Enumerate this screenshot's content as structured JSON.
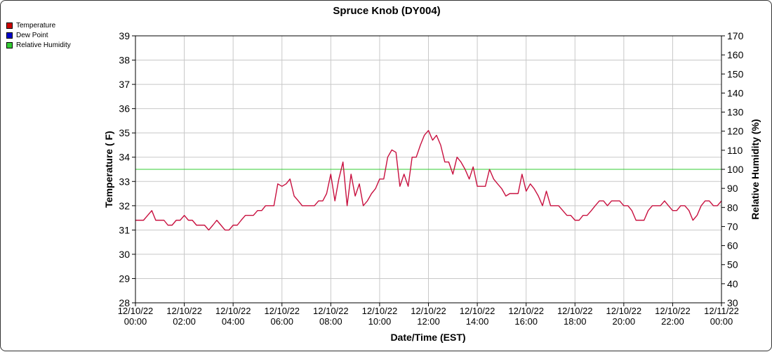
{
  "chart_data": {
    "type": "line",
    "title": "Spruce Knob (DY004)",
    "xlabel": "Date/Time (EST)",
    "ylabel": "Temperature ( F)",
    "y2label": "Relative Humidity (%)",
    "ylim": [
      28,
      39
    ],
    "y2lim": [
      30,
      170
    ],
    "yticks": [
      "28",
      "29",
      "30",
      "31",
      "32",
      "33",
      "34",
      "35",
      "36",
      "37",
      "38",
      "39"
    ],
    "y2ticks": [
      "30",
      "40",
      "50",
      "60",
      "70",
      "80",
      "90",
      "100",
      "110",
      "120",
      "130",
      "140",
      "150",
      "160",
      "170"
    ],
    "xlim": [
      0,
      24
    ],
    "xticks": [
      {
        "date": "12/10/22",
        "time": "00:00"
      },
      {
        "date": "12/10/22",
        "time": "02:00"
      },
      {
        "date": "12/10/22",
        "time": "04:00"
      },
      {
        "date": "12/10/22",
        "time": "06:00"
      },
      {
        "date": "12/10/22",
        "time": "08:00"
      },
      {
        "date": "12/10/22",
        "time": "10:00"
      },
      {
        "date": "12/10/22",
        "time": "12:00"
      },
      {
        "date": "12/10/22",
        "time": "14:00"
      },
      {
        "date": "12/10/22",
        "time": "16:00"
      },
      {
        "date": "12/10/22",
        "time": "18:00"
      },
      {
        "date": "12/10/22",
        "time": "20:00"
      },
      {
        "date": "12/10/22",
        "time": "22:00"
      },
      {
        "date": "12/11/22",
        "time": "00:00"
      }
    ],
    "grid": true,
    "legend_position": "top-left",
    "series": [
      {
        "name": "Temperature",
        "color": "#cc0000",
        "axis": "left",
        "x": [
          0,
          0.33,
          0.5,
          0.67,
          0.83,
          1,
          1.17,
          1.33,
          1.5,
          1.67,
          1.83,
          2,
          2.17,
          2.33,
          2.5,
          2.67,
          2.83,
          3,
          3.17,
          3.33,
          3.5,
          3.67,
          3.83,
          4,
          4.17,
          4.33,
          4.5,
          4.67,
          4.83,
          5,
          5.17,
          5.33,
          5.5,
          5.67,
          5.83,
          6,
          6.17,
          6.33,
          6.5,
          6.67,
          6.83,
          7,
          7.17,
          7.33,
          7.5,
          7.67,
          7.83,
          8,
          8.17,
          8.33,
          8.5,
          8.67,
          8.83,
          9,
          9.17,
          9.33,
          9.5,
          9.67,
          9.83,
          10,
          10.17,
          10.33,
          10.5,
          10.67,
          10.83,
          11,
          11.17,
          11.33,
          11.5,
          11.67,
          11.83,
          12,
          12.17,
          12.33,
          12.5,
          12.67,
          12.83,
          13,
          13.17,
          13.33,
          13.5,
          13.67,
          13.83,
          14,
          14.17,
          14.33,
          14.5,
          14.67,
          14.83,
          15,
          15.17,
          15.33,
          15.5,
          15.67,
          15.83,
          16,
          16.17,
          16.33,
          16.5,
          16.67,
          16.83,
          17,
          17.17,
          17.33,
          17.5,
          17.67,
          17.83,
          18,
          18.17,
          18.33,
          18.5,
          18.67,
          18.83,
          19,
          19.17,
          19.33,
          19.5,
          19.67,
          19.83,
          20,
          20.17,
          20.33,
          20.5,
          20.67,
          20.83,
          21,
          21.17,
          21.33,
          21.5,
          21.67,
          21.83,
          22,
          22.17,
          22.33,
          22.5,
          22.67,
          22.83,
          23,
          23.17,
          23.33,
          23.5,
          23.67,
          23.83,
          24
        ],
        "y": [
          31.4,
          31.4,
          31.6,
          31.8,
          31.4,
          31.4,
          31.4,
          31.2,
          31.2,
          31.4,
          31.4,
          31.6,
          31.4,
          31.4,
          31.2,
          31.2,
          31.2,
          31.0,
          31.2,
          31.4,
          31.2,
          31.0,
          31.0,
          31.2,
          31.2,
          31.4,
          31.6,
          31.6,
          31.6,
          31.8,
          31.8,
          32.0,
          32.0,
          32.0,
          32.9,
          32.8,
          32.9,
          33.1,
          32.4,
          32.2,
          32.0,
          32.0,
          32.0,
          32.0,
          32.2,
          32.2,
          32.5,
          33.3,
          32.2,
          33.1,
          33.8,
          32.0,
          33.3,
          32.4,
          32.9,
          32.0,
          32.2,
          32.5,
          32.7,
          33.1,
          33.1,
          34.0,
          34.3,
          34.2,
          32.8,
          33.3,
          32.8,
          34.0,
          34.0,
          34.5,
          34.9,
          35.1,
          34.7,
          34.9,
          34.5,
          33.8,
          33.8,
          33.3,
          34.0,
          33.8,
          33.5,
          33.1,
          33.6,
          32.8,
          32.8,
          32.8,
          33.5,
          33.1,
          32.9,
          32.7,
          32.4,
          32.5,
          32.5,
          32.5,
          33.3,
          32.6,
          32.9,
          32.7,
          32.4,
          32.0,
          32.6,
          32.0,
          32.0,
          32.0,
          31.8,
          31.6,
          31.6,
          31.4,
          31.4,
          31.6,
          31.6,
          31.8,
          32.0,
          32.2,
          32.2,
          32.0,
          32.2,
          32.2,
          32.2,
          32.0,
          32.0,
          31.8,
          31.4,
          31.4,
          31.4,
          31.8,
          32.0,
          32.0,
          32.0,
          32.2,
          32.0,
          31.8,
          31.8,
          32.0,
          32.0,
          31.8,
          31.4,
          31.6,
          32.0,
          32.2,
          32.2,
          32.0,
          32.0,
          32.2
        ]
      },
      {
        "name": "Dew Point",
        "color": "#0000cc",
        "axis": "left",
        "x": [],
        "y": []
      },
      {
        "name": "Relative Humidity",
        "color": "#33cc33",
        "axis": "right",
        "x": [
          0,
          24
        ],
        "y": [
          100,
          100
        ]
      }
    ]
  }
}
